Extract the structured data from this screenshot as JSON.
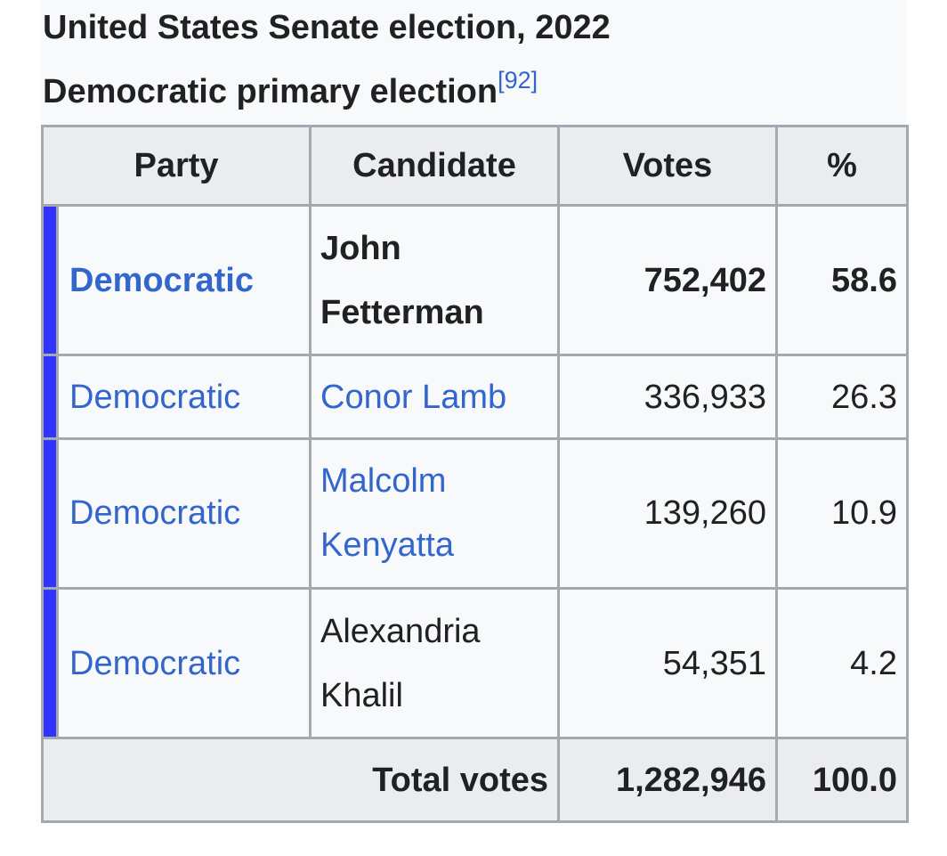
{
  "caption": {
    "title": "United States Senate election, 2022",
    "subtitle": "Democratic primary election",
    "ref": "[92]"
  },
  "table": {
    "headers": [
      "Party",
      "Candidate",
      "Votes",
      "%"
    ],
    "party_color": "#3333ff",
    "link_color": "#3366cc",
    "rows": [
      {
        "party": "Democratic",
        "candidate": "John Fetterman",
        "votes": "752,402",
        "percent": "58.6",
        "winner": true
      },
      {
        "party": "Democratic",
        "candidate": "Conor Lamb",
        "votes": "336,933",
        "percent": "26.3",
        "winner": false
      },
      {
        "party": "Democratic",
        "candidate": "Malcolm Kenyatta",
        "votes": "139,260",
        "percent": "10.9",
        "winner": false
      },
      {
        "party": "Democratic",
        "candidate": "Alexandria Khalil",
        "votes": "54,351",
        "percent": "4.2",
        "winner": false
      }
    ],
    "total": {
      "label": "Total votes",
      "votes": "1,282,946",
      "percent": "100.0"
    }
  }
}
